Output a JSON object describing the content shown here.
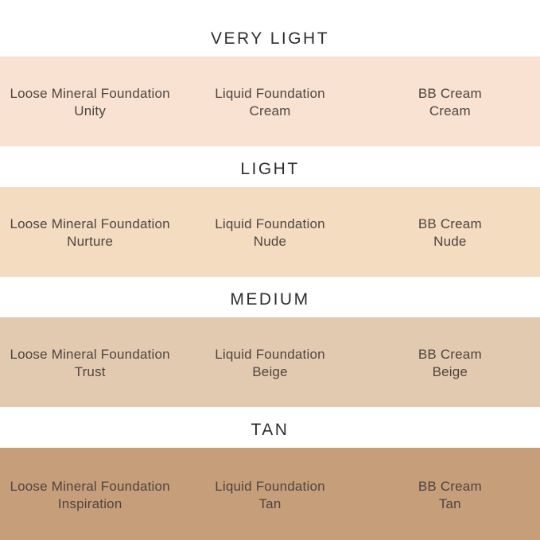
{
  "colors": {
    "background": "#ffffff",
    "heading_text": "#2e2e2e",
    "product_text": "#4d4540"
  },
  "sections": [
    {
      "heading": "VERY LIGHT",
      "band_color": "#f9e2d2",
      "products": [
        {
          "line1": "Loose Mineral Foundation",
          "line2": "Unity"
        },
        {
          "line1": "Liquid Foundation",
          "line2": "Cream"
        },
        {
          "line1": "BB Cream",
          "line2": "Cream"
        }
      ]
    },
    {
      "heading": "LIGHT",
      "band_color": "#f3dcc0",
      "products": [
        {
          "line1": "Loose Mineral Foundation",
          "line2": "Nurture"
        },
        {
          "line1": "Liquid Foundation",
          "line2": "Nude"
        },
        {
          "line1": "BB Cream",
          "line2": "Nude"
        }
      ]
    },
    {
      "heading": "MEDIUM",
      "band_color": "#e2cab0",
      "products": [
        {
          "line1": "Loose Mineral Foundation",
          "line2": "Trust"
        },
        {
          "line1": "Liquid Foundation",
          "line2": "Beige"
        },
        {
          "line1": "BB Cream",
          "line2": "Beige"
        }
      ]
    },
    {
      "heading": "TAN",
      "band_color": "#c69e7a",
      "products": [
        {
          "line1": "Loose Mineral Foundation",
          "line2": "Inspiration"
        },
        {
          "line1": "Liquid Foundation",
          "line2": "Tan"
        },
        {
          "line1": "BB Cream",
          "line2": "Tan"
        }
      ]
    }
  ],
  "chart_data": {
    "type": "table",
    "title": "Foundation shade matching chart",
    "columns": [
      "Loose Mineral Foundation",
      "Liquid Foundation",
      "BB Cream"
    ],
    "rows": [
      {
        "shade_level": "VERY LIGHT",
        "band_color": "#f9e2d2",
        "values": [
          "Unity",
          "Cream",
          "Cream"
        ]
      },
      {
        "shade_level": "LIGHT",
        "band_color": "#f3dcc0",
        "values": [
          "Nurture",
          "Nude",
          "Nude"
        ]
      },
      {
        "shade_level": "MEDIUM",
        "band_color": "#e2cab0",
        "values": [
          "Trust",
          "Beige",
          "Beige"
        ]
      },
      {
        "shade_level": "TAN",
        "band_color": "#c69e7a",
        "values": [
          "Inspiration",
          "Tan",
          "Tan"
        ]
      }
    ],
    "layout_hints": {
      "rows_rendered_as": "full-width color bands",
      "labels": "centered, 3 columns per band"
    }
  }
}
